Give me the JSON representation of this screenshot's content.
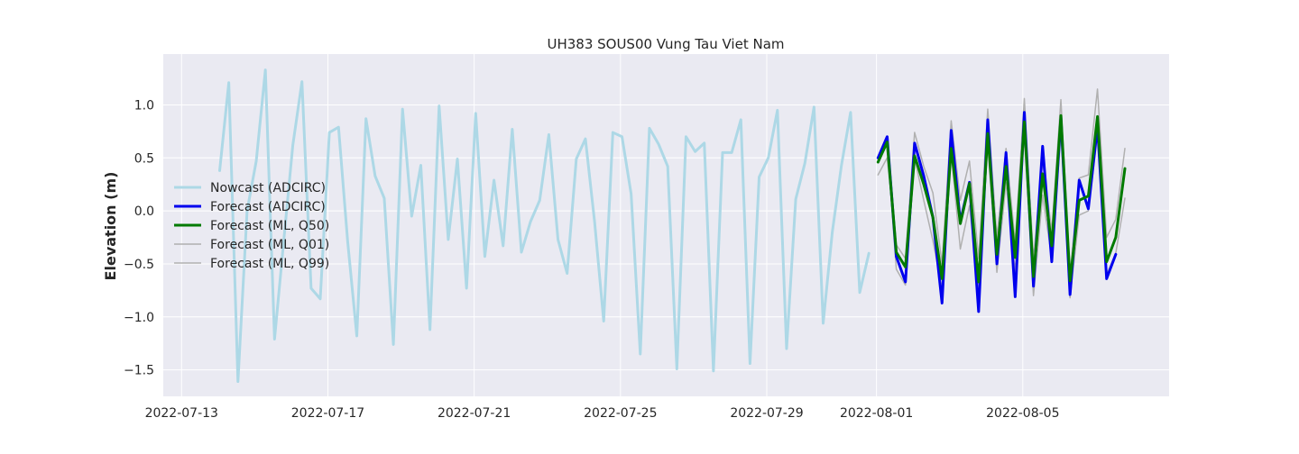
{
  "chart_data": {
    "type": "line",
    "title": "UH383 SOUS00 Vung Tau Viet Nam",
    "xlabel": "",
    "ylabel": "Elevation (m)",
    "xlim": [
      "2022-07-12 12:00",
      "2022-08-09 00:00"
    ],
    "ylim": [
      -1.75,
      1.48
    ],
    "x_ticks": [
      "2022-07-13",
      "2022-07-17",
      "2022-07-21",
      "2022-07-25",
      "2022-07-29",
      "2022-08-01",
      "2022-08-05"
    ],
    "y_ticks": [
      1.0,
      0.5,
      0.0,
      -0.5,
      -1.0,
      -1.5
    ],
    "y_tick_labels": [
      "1.0",
      "0.5",
      "0.0",
      "−0.5",
      "−1.0",
      "−1.5"
    ],
    "grid": true,
    "legend_position": "center-left",
    "series": [
      {
        "name": "Nowcast (ADCIRC)",
        "color": "#add8e6",
        "width": 3,
        "points": [
          [
            "2022-07-14 01:00",
            0.38
          ],
          [
            "2022-07-14 07:00",
            1.21
          ],
          [
            "2022-07-14 13:00",
            -1.61
          ],
          [
            "2022-07-14 19:00",
            0.0
          ],
          [
            "2022-07-15 01:00",
            0.47
          ],
          [
            "2022-07-15 07:00",
            1.33
          ],
          [
            "2022-07-15 13:00",
            -1.21
          ],
          [
            "2022-07-15 19:00",
            -0.29
          ],
          [
            "2022-07-16 01:00",
            0.62
          ],
          [
            "2022-07-16 07:00",
            1.22
          ],
          [
            "2022-07-16 13:00",
            -0.73
          ],
          [
            "2022-07-16 19:00",
            -0.83
          ],
          [
            "2022-07-17 01:00",
            0.74
          ],
          [
            "2022-07-17 07:00",
            0.79
          ],
          [
            "2022-07-17 13:00",
            -0.29
          ],
          [
            "2022-07-17 19:00",
            -1.18
          ],
          [
            "2022-07-18 01:00",
            0.87
          ],
          [
            "2022-07-18 07:00",
            0.33
          ],
          [
            "2022-07-18 13:00",
            0.12
          ],
          [
            "2022-07-18 19:00",
            -1.26
          ],
          [
            "2022-07-19 01:00",
            0.96
          ],
          [
            "2022-07-19 07:00",
            -0.05
          ],
          [
            "2022-07-19 13:00",
            0.43
          ],
          [
            "2022-07-19 19:00",
            -1.12
          ],
          [
            "2022-07-20 01:00",
            0.99
          ],
          [
            "2022-07-20 07:00",
            -0.27
          ],
          [
            "2022-07-20 13:00",
            0.49
          ],
          [
            "2022-07-20 19:00",
            -0.73
          ],
          [
            "2022-07-21 01:00",
            0.92
          ],
          [
            "2022-07-21 07:00",
            -0.43
          ],
          [
            "2022-07-21 13:00",
            0.29
          ],
          [
            "2022-07-21 19:00",
            -0.33
          ],
          [
            "2022-07-22 01:00",
            0.77
          ],
          [
            "2022-07-22 07:00",
            -0.39
          ],
          [
            "2022-07-22 13:00",
            -0.1
          ],
          [
            "2022-07-22 19:00",
            0.1
          ],
          [
            "2022-07-23 01:00",
            0.72
          ],
          [
            "2022-07-23 07:00",
            -0.27
          ],
          [
            "2022-07-23 13:00",
            -0.59
          ],
          [
            "2022-07-23 19:00",
            0.49
          ],
          [
            "2022-07-24 01:00",
            0.68
          ],
          [
            "2022-07-24 07:00",
            -0.1
          ],
          [
            "2022-07-24 13:00",
            -1.04
          ],
          [
            "2022-07-24 19:00",
            0.74
          ],
          [
            "2022-07-25 01:00",
            0.7
          ],
          [
            "2022-07-25 07:00",
            0.16
          ],
          [
            "2022-07-25 13:00",
            -1.35
          ],
          [
            "2022-07-25 19:00",
            0.78
          ],
          [
            "2022-07-26 01:00",
            0.63
          ],
          [
            "2022-07-26 07:00",
            0.42
          ],
          [
            "2022-07-26 13:00",
            -1.49
          ],
          [
            "2022-07-26 19:00",
            0.7
          ],
          [
            "2022-07-27 01:00",
            0.56
          ],
          [
            "2022-07-27 07:00",
            0.64
          ],
          [
            "2022-07-27 13:00",
            -1.51
          ],
          [
            "2022-07-27 19:00",
            0.55
          ],
          [
            "2022-07-28 01:00",
            0.55
          ],
          [
            "2022-07-28 07:00",
            0.86
          ],
          [
            "2022-07-28 13:00",
            -1.44
          ],
          [
            "2022-07-28 19:00",
            0.32
          ],
          [
            "2022-07-29 01:00",
            0.5
          ],
          [
            "2022-07-29 07:00",
            0.95
          ],
          [
            "2022-07-29 13:00",
            -1.3
          ],
          [
            "2022-07-29 19:00",
            0.11
          ],
          [
            "2022-07-30 01:00",
            0.45
          ],
          [
            "2022-07-30 07:00",
            0.98
          ],
          [
            "2022-07-30 13:00",
            -1.06
          ],
          [
            "2022-07-30 19:00",
            -0.2
          ],
          [
            "2022-07-31 01:00",
            0.43
          ],
          [
            "2022-07-31 07:00",
            0.93
          ],
          [
            "2022-07-31 13:00",
            -0.77
          ],
          [
            "2022-07-31 19:00",
            -0.4
          ]
        ]
      },
      {
        "name": "Forecast (ADCIRC)",
        "color": "#0000ee",
        "width": 3,
        "points": [
          [
            "2022-08-01 01:00",
            0.5
          ],
          [
            "2022-08-01 07:00",
            0.7
          ],
          [
            "2022-08-01 13:00",
            -0.43
          ],
          [
            "2022-08-01 19:00",
            -0.67
          ],
          [
            "2022-08-02 01:00",
            0.64
          ],
          [
            "2022-08-02 07:00",
            0.33
          ],
          [
            "2022-08-02 13:00",
            -0.06
          ],
          [
            "2022-08-02 19:00",
            -0.87
          ],
          [
            "2022-08-03 01:00",
            0.76
          ],
          [
            "2022-08-03 07:00",
            -0.1
          ],
          [
            "2022-08-03 13:00",
            0.27
          ],
          [
            "2022-08-03 19:00",
            -0.95
          ],
          [
            "2022-08-04 01:00",
            0.86
          ],
          [
            "2022-08-04 07:00",
            -0.5
          ],
          [
            "2022-08-04 13:00",
            0.55
          ],
          [
            "2022-08-04 19:00",
            -0.81
          ],
          [
            "2022-08-05 01:00",
            0.93
          ],
          [
            "2022-08-05 07:00",
            -0.71
          ],
          [
            "2022-08-05 13:00",
            0.61
          ],
          [
            "2022-08-05 19:00",
            -0.48
          ],
          [
            "2022-08-06 01:00",
            0.88
          ],
          [
            "2022-08-06 07:00",
            -0.79
          ],
          [
            "2022-08-06 13:00",
            0.29
          ],
          [
            "2022-08-06 19:00",
            0.02
          ],
          [
            "2022-08-07 01:00",
            0.8
          ],
          [
            "2022-08-07 07:00",
            -0.64
          ],
          [
            "2022-08-07 13:00",
            -0.41
          ]
        ]
      },
      {
        "name": "Forecast (ML, Q50)",
        "color": "#007a00",
        "width": 3,
        "points": [
          [
            "2022-08-01 01:00",
            0.46
          ],
          [
            "2022-08-01 07:00",
            0.65
          ],
          [
            "2022-08-01 13:00",
            -0.39
          ],
          [
            "2022-08-01 19:00",
            -0.53
          ],
          [
            "2022-08-02 01:00",
            0.52
          ],
          [
            "2022-08-02 07:00",
            0.25
          ],
          [
            "2022-08-02 13:00",
            -0.06
          ],
          [
            "2022-08-02 19:00",
            -0.64
          ],
          [
            "2022-08-03 01:00",
            0.59
          ],
          [
            "2022-08-03 07:00",
            -0.12
          ],
          [
            "2022-08-03 13:00",
            0.26
          ],
          [
            "2022-08-03 19:00",
            -0.67
          ],
          [
            "2022-08-04 01:00",
            0.73
          ],
          [
            "2022-08-04 07:00",
            -0.41
          ],
          [
            "2022-08-04 13:00",
            0.42
          ],
          [
            "2022-08-04 19:00",
            -0.44
          ],
          [
            "2022-08-05 01:00",
            0.84
          ],
          [
            "2022-08-05 07:00",
            -0.62
          ],
          [
            "2022-08-05 13:00",
            0.35
          ],
          [
            "2022-08-05 19:00",
            -0.33
          ],
          [
            "2022-08-06 01:00",
            0.9
          ],
          [
            "2022-08-06 07:00",
            -0.66
          ],
          [
            "2022-08-06 13:00",
            0.1
          ],
          [
            "2022-08-06 19:00",
            0.14
          ],
          [
            "2022-08-07 01:00",
            0.89
          ],
          [
            "2022-08-07 07:00",
            -0.48
          ],
          [
            "2022-08-07 13:00",
            -0.25
          ],
          [
            "2022-08-07 19:00",
            0.4
          ]
        ]
      },
      {
        "name": "Forecast (ML, Q01)",
        "color": "#b0b0b0",
        "width": 1.5,
        "points": [
          [
            "2022-08-01 01:00",
            0.46
          ],
          [
            "2022-08-01 07:00",
            0.63
          ],
          [
            "2022-08-01 13:00",
            -0.55
          ],
          [
            "2022-08-01 19:00",
            -0.7
          ],
          [
            "2022-08-02 01:00",
            0.5
          ],
          [
            "2022-08-02 07:00",
            0.1
          ],
          [
            "2022-08-02 13:00",
            -0.28
          ],
          [
            "2022-08-02 19:00",
            -0.73
          ],
          [
            "2022-08-03 01:00",
            0.55
          ],
          [
            "2022-08-03 07:00",
            -0.36
          ],
          [
            "2022-08-03 13:00",
            0.05
          ],
          [
            "2022-08-03 19:00",
            -0.74
          ],
          [
            "2022-08-04 01:00",
            0.63
          ],
          [
            "2022-08-04 07:00",
            -0.58
          ],
          [
            "2022-08-04 13:00",
            0.27
          ],
          [
            "2022-08-04 19:00",
            -0.57
          ],
          [
            "2022-08-05 01:00",
            0.7
          ],
          [
            "2022-08-05 07:00",
            -0.8
          ],
          [
            "2022-08-05 13:00",
            0.15
          ],
          [
            "2022-08-05 19:00",
            -0.45
          ],
          [
            "2022-08-06 01:00",
            0.74
          ],
          [
            "2022-08-06 07:00",
            -0.82
          ],
          [
            "2022-08-06 13:00",
            -0.04
          ],
          [
            "2022-08-06 19:00",
            0.0
          ],
          [
            "2022-08-07 01:00",
            0.72
          ],
          [
            "2022-08-07 07:00",
            -0.6
          ],
          [
            "2022-08-07 13:00",
            -0.4
          ],
          [
            "2022-08-07 19:00",
            0.12
          ]
        ]
      },
      {
        "name": "Forecast (ML, Q99)",
        "color": "#b0b0b0",
        "width": 1.5,
        "points": [
          [
            "2022-08-01 01:00",
            0.34
          ],
          [
            "2022-08-01 07:00",
            0.5
          ],
          [
            "2022-08-01 13:00",
            -0.32
          ],
          [
            "2022-08-01 19:00",
            -0.45
          ],
          [
            "2022-08-02 01:00",
            0.74
          ],
          [
            "2022-08-02 07:00",
            0.42
          ],
          [
            "2022-08-02 13:00",
            0.17
          ],
          [
            "2022-08-02 19:00",
            -0.5
          ],
          [
            "2022-08-03 01:00",
            0.85
          ],
          [
            "2022-08-03 07:00",
            0.1
          ],
          [
            "2022-08-03 13:00",
            0.47
          ],
          [
            "2022-08-03 19:00",
            -0.45
          ],
          [
            "2022-08-04 01:00",
            0.96
          ],
          [
            "2022-08-04 07:00",
            -0.25
          ],
          [
            "2022-08-04 13:00",
            0.59
          ],
          [
            "2022-08-04 19:00",
            -0.3
          ],
          [
            "2022-08-05 01:00",
            1.06
          ],
          [
            "2022-08-05 07:00",
            -0.45
          ],
          [
            "2022-08-05 13:00",
            0.47
          ],
          [
            "2022-08-05 19:00",
            -0.19
          ],
          [
            "2022-08-06 01:00",
            1.05
          ],
          [
            "2022-08-06 07:00",
            -0.6
          ],
          [
            "2022-08-06 13:00",
            0.31
          ],
          [
            "2022-08-06 19:00",
            0.34
          ],
          [
            "2022-08-07 01:00",
            1.15
          ],
          [
            "2022-08-07 07:00",
            -0.25
          ],
          [
            "2022-08-07 13:00",
            -0.08
          ],
          [
            "2022-08-07 19:00",
            0.59
          ]
        ]
      }
    ]
  }
}
